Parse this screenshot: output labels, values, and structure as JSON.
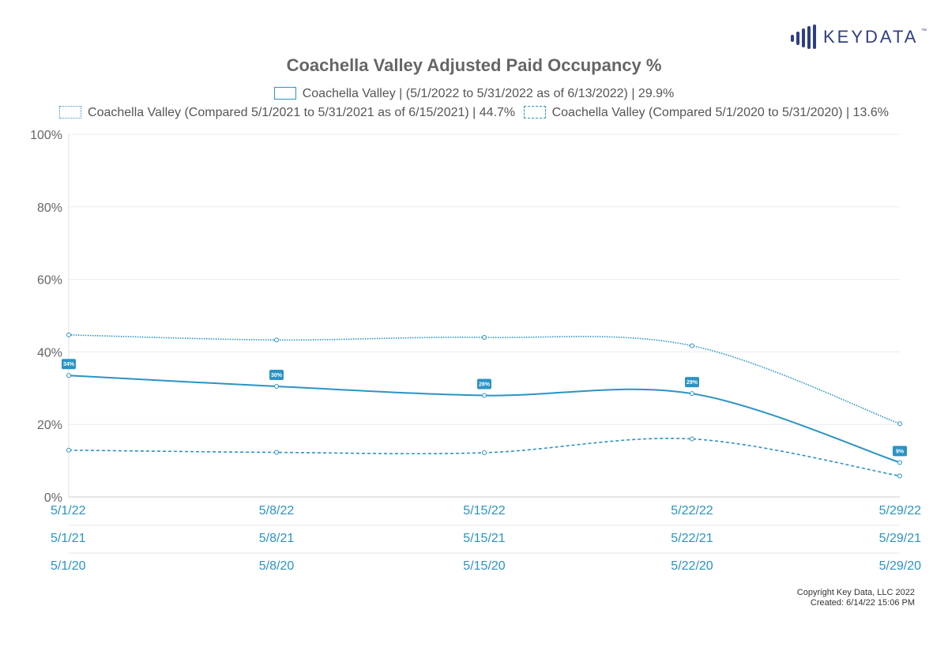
{
  "brand": {
    "name": "KEYDATA",
    "tm": "™",
    "accent": "#2e3e86"
  },
  "chart_data": {
    "type": "line",
    "title": "Coachella Valley Adjusted Paid Occupancy %",
    "ylim": [
      0,
      100
    ],
    "y_ticks": [
      "0%",
      "20%",
      "40%",
      "60%",
      "80%",
      "100%"
    ],
    "x_axis_rows": [
      [
        "5/1/22",
        "5/8/22",
        "5/15/22",
        "5/22/22",
        "5/29/22"
      ],
      [
        "5/1/21",
        "5/8/21",
        "5/15/21",
        "5/22/21",
        "5/29/21"
      ],
      [
        "5/1/20",
        "5/8/20",
        "5/15/20",
        "5/22/20",
        "5/29/20"
      ]
    ],
    "grid": true,
    "legend_position": "top",
    "series": [
      {
        "name": "Coachella Valley | (5/1/2022 to 5/31/2022 as of 6/13/2022) | 29.9%",
        "style": "solid",
        "color": "#2b93c4",
        "values": [
          33.5,
          30.5,
          28,
          28.5,
          9.5
        ],
        "data_labels": [
          "34%",
          "30%",
          "28%",
          "29%",
          "9%"
        ]
      },
      {
        "name": "Coachella Valley (Compared 5/1/2021 to 5/31/2021 as of 6/15/2021) | 44.7%",
        "style": "dotted",
        "color": "#2b93c4",
        "values": [
          44.7,
          43.3,
          44,
          41.7,
          20.2
        ]
      },
      {
        "name": "Coachella Valley (Compared 5/1/2020 to 5/31/2020) | 13.6%",
        "style": "dashed",
        "color": "#2b93c4",
        "values": [
          12.9,
          12.3,
          12.2,
          16,
          5.8
        ]
      }
    ]
  },
  "footer": {
    "copyright": "Copyright Key Data, LLC 2022",
    "created": "Created: 6/14/22 15:06 PM"
  }
}
